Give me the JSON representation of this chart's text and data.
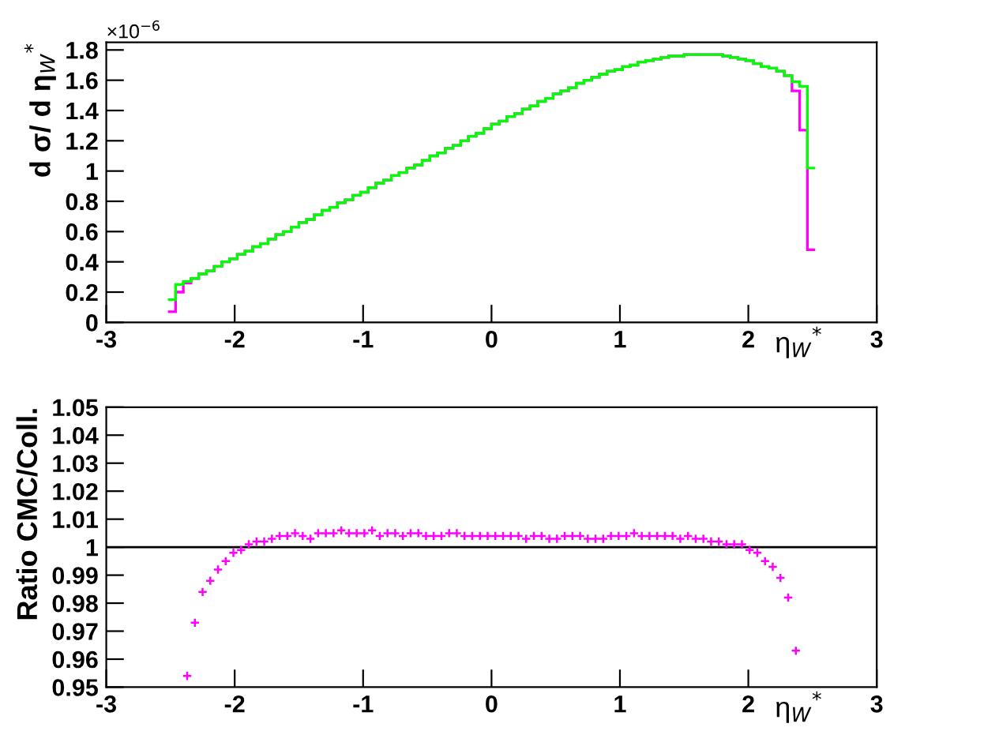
{
  "chart_data": [
    {
      "type": "histogram",
      "ylabel": "d σ/ d η$_{W}$$^{*}$",
      "xlabel": "η$_{W}$$^{*}$",
      "annotations": [
        "×10$^{−6}$"
      ],
      "bins": [
        -2.52,
        -2.46,
        -2.4,
        -2.34,
        -2.28,
        -2.22,
        -2.16,
        -2.1,
        -2.04,
        -1.98,
        -1.92,
        -1.86,
        -1.8,
        -1.74,
        -1.68,
        -1.62,
        -1.56,
        -1.5,
        -1.44,
        -1.38,
        -1.32,
        -1.26,
        -1.2,
        -1.14,
        -1.08,
        -1.02,
        -0.96,
        -0.9,
        -0.84,
        -0.78,
        -0.72,
        -0.66,
        -0.6,
        -0.54,
        -0.48,
        -0.42,
        -0.36,
        -0.3,
        -0.24,
        -0.18,
        -0.12,
        -0.06,
        0,
        0.06,
        0.12,
        0.18,
        0.24,
        0.3,
        0.36,
        0.42,
        0.48,
        0.54,
        0.6,
        0.66,
        0.72,
        0.78,
        0.84,
        0.9,
        0.96,
        1.02,
        1.08,
        1.14,
        1.2,
        1.26,
        1.32,
        1.38,
        1.44,
        1.5,
        1.56,
        1.62,
        1.68,
        1.74,
        1.8,
        1.86,
        1.92,
        1.98,
        2.04,
        2.1,
        2.16,
        2.22,
        2.28,
        2.34,
        2.4,
        2.46,
        2.52
      ],
      "series": [
        {
          "color": "#ff00ff",
          "values": [
            0.07,
            0.2,
            0.26,
            0.29,
            0.32,
            0.34,
            0.37,
            0.4,
            0.42,
            0.45,
            0.47,
            0.5,
            0.52,
            0.55,
            0.58,
            0.6,
            0.63,
            0.66,
            0.68,
            0.71,
            0.74,
            0.76,
            0.79,
            0.81,
            0.84,
            0.86,
            0.89,
            0.92,
            0.94,
            0.97,
            0.99,
            1.02,
            1.04,
            1.07,
            1.1,
            1.12,
            1.15,
            1.17,
            1.2,
            1.23,
            1.25,
            1.28,
            1.31,
            1.33,
            1.36,
            1.38,
            1.41,
            1.43,
            1.46,
            1.48,
            1.51,
            1.53,
            1.55,
            1.58,
            1.6,
            1.62,
            1.64,
            1.66,
            1.67,
            1.69,
            1.7,
            1.72,
            1.73,
            1.74,
            1.75,
            1.76,
            1.76,
            1.77,
            1.77,
            1.77,
            1.77,
            1.77,
            1.76,
            1.75,
            1.74,
            1.73,
            1.71,
            1.69,
            1.68,
            1.66,
            1.63,
            1.53,
            1.27,
            0.48
          ]
        },
        {
          "color": "#00ff00",
          "values": [
            0.15,
            0.25,
            0.27,
            0.29,
            0.32,
            0.34,
            0.37,
            0.4,
            0.42,
            0.45,
            0.47,
            0.5,
            0.52,
            0.55,
            0.58,
            0.6,
            0.63,
            0.66,
            0.68,
            0.71,
            0.74,
            0.76,
            0.79,
            0.81,
            0.84,
            0.86,
            0.89,
            0.92,
            0.94,
            0.97,
            0.99,
            1.02,
            1.04,
            1.07,
            1.1,
            1.12,
            1.15,
            1.17,
            1.2,
            1.23,
            1.25,
            1.28,
            1.31,
            1.33,
            1.36,
            1.38,
            1.41,
            1.43,
            1.46,
            1.48,
            1.51,
            1.53,
            1.55,
            1.58,
            1.6,
            1.62,
            1.64,
            1.66,
            1.67,
            1.69,
            1.7,
            1.72,
            1.73,
            1.74,
            1.75,
            1.76,
            1.76,
            1.77,
            1.77,
            1.77,
            1.77,
            1.77,
            1.76,
            1.75,
            1.74,
            1.73,
            1.71,
            1.69,
            1.68,
            1.66,
            1.63,
            1.59,
            1.56,
            1.02
          ]
        }
      ],
      "xlim": [
        -3,
        3
      ],
      "xticks": [
        -3,
        -2,
        -1,
        0,
        1,
        2,
        3
      ],
      "ylim": [
        0,
        1.85
      ],
      "yticks": [
        0,
        0.2,
        0.4,
        0.6,
        0.8,
        1,
        1.2,
        1.4,
        1.6,
        1.8
      ],
      "grid": false,
      "legend": false
    },
    {
      "type": "scatter",
      "ylabel": "Ratio CMC/Coll.",
      "xlabel": "η$_{W}$$^{*}$",
      "marker": "cross",
      "series": [
        {
          "color": "#ff00ff",
          "x": [
            -2.37,
            -2.31,
            -2.25,
            -2.19,
            -2.13,
            -2.07,
            -2.01,
            -1.95,
            -1.89,
            -1.83,
            -1.77,
            -1.71,
            -1.65,
            -1.59,
            -1.53,
            -1.47,
            -1.41,
            -1.35,
            -1.29,
            -1.23,
            -1.17,
            -1.11,
            -1.05,
            -0.99,
            -0.93,
            -0.87,
            -0.81,
            -0.75,
            -0.69,
            -0.63,
            -0.57,
            -0.51,
            -0.45,
            -0.39,
            -0.33,
            -0.27,
            -0.21,
            -0.15,
            -0.09,
            -0.03,
            0.03,
            0.09,
            0.15,
            0.21,
            0.27,
            0.33,
            0.39,
            0.45,
            0.51,
            0.57,
            0.63,
            0.69,
            0.75,
            0.81,
            0.87,
            0.93,
            0.99,
            1.05,
            1.11,
            1.17,
            1.23,
            1.29,
            1.35,
            1.41,
            1.47,
            1.53,
            1.59,
            1.65,
            1.71,
            1.77,
            1.83,
            1.89,
            1.95,
            2.01,
            2.07,
            2.13,
            2.19,
            2.25,
            2.31,
            2.37
          ],
          "values": [
            0.954,
            0.973,
            0.984,
            0.988,
            0.992,
            0.995,
            0.998,
            0.999,
            1.001,
            1.002,
            1.002,
            1.003,
            1.004,
            1.004,
            1.005,
            1.004,
            1.003,
            1.005,
            1.005,
            1.005,
            1.006,
            1.005,
            1.005,
            1.005,
            1.006,
            1.004,
            1.005,
            1.005,
            1.004,
            1.005,
            1.005,
            1.004,
            1.004,
            1.004,
            1.005,
            1.005,
            1.004,
            1.004,
            1.004,
            1.004,
            1.004,
            1.004,
            1.004,
            1.004,
            1.003,
            1.004,
            1.004,
            1.003,
            1.003,
            1.004,
            1.004,
            1.004,
            1.003,
            1.003,
            1.003,
            1.004,
            1.004,
            1.004,
            1.005,
            1.004,
            1.004,
            1.004,
            1.004,
            1.004,
            1.003,
            1.004,
            1.003,
            1.003,
            1.002,
            1.002,
            1.001,
            1.001,
            1.001,
            0.999,
            0.998,
            0.995,
            0.993,
            0.989,
            0.982,
            0.963
          ]
        }
      ],
      "xlim": [
        -3,
        3
      ],
      "xticks": [
        -3,
        -2,
        -1,
        0,
        1,
        2,
        3
      ],
      "ylim": [
        0.95,
        1.05
      ],
      "yticks": [
        0.95,
        0.96,
        0.97,
        0.98,
        0.99,
        1,
        1.01,
        1.02,
        1.03,
        1.04,
        1.05
      ],
      "ref_lines": [
        {
          "axis": "y",
          "value": 1,
          "color": "#000000"
        }
      ],
      "grid": false,
      "legend": false
    }
  ]
}
